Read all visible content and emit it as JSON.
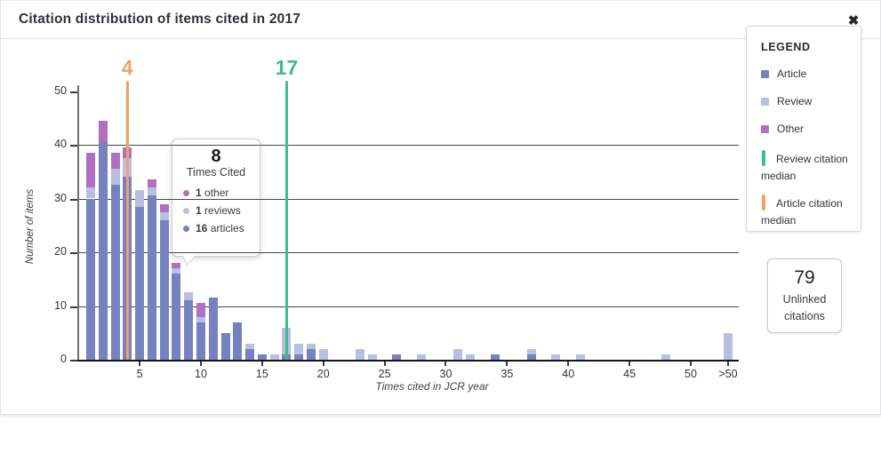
{
  "header": {
    "title": "Citation distribution of items cited in 2017",
    "close_icon": "✖"
  },
  "colors": {
    "article": "#7681bf",
    "review": "#b8bfe0",
    "other": "#b16fc2",
    "article_median": "#f0a163",
    "review_median": "#3fbc90"
  },
  "chart_data": {
    "type": "bar",
    "stacked": true,
    "title": "Citation distribution of items cited in 2017",
    "xlabel": "Times cited in JCR year",
    "ylabel": "Number of items",
    "ylim": [
      0,
      50
    ],
    "yticks": [
      0,
      10,
      20,
      30,
      40,
      50
    ],
    "gridlines": [
      10,
      20,
      30,
      40
    ],
    "xtick_labels": [
      "5",
      "10",
      "15",
      "20",
      "25",
      "30",
      "35",
      "40",
      "45",
      "50",
      ">50"
    ],
    "series_names": [
      "Article",
      "Review",
      "Other"
    ],
    "bars": [
      {
        "x": 1,
        "article": 30,
        "review": 2,
        "other": 6.5
      },
      {
        "x": 2,
        "article": 40.5,
        "review": 0,
        "other": 4
      },
      {
        "x": 3,
        "article": 32.5,
        "review": 3,
        "other": 3
      },
      {
        "x": 4,
        "article": 34,
        "review": 3.5,
        "other": 2
      },
      {
        "x": 5,
        "article": 28.5,
        "review": 3,
        "other": 0
      },
      {
        "x": 6,
        "article": 30.5,
        "review": 1.5,
        "other": 1.5
      },
      {
        "x": 7,
        "article": 26,
        "review": 1.5,
        "other": 1.5
      },
      {
        "x": 8,
        "article": 16,
        "review": 1,
        "other": 1
      },
      {
        "x": 9,
        "article": 11,
        "review": 1.5,
        "other": 0
      },
      {
        "x": 10,
        "article": 7,
        "review": 1,
        "other": 2.5
      },
      {
        "x": 11,
        "article": 11.5,
        "review": 0,
        "other": 0
      },
      {
        "x": 12,
        "article": 5,
        "review": 0,
        "other": 0
      },
      {
        "x": 13,
        "article": 7,
        "review": 0,
        "other": 0
      },
      {
        "x": 14,
        "article": 2,
        "review": 1,
        "other": 0
      },
      {
        "x": 15,
        "article": 1,
        "review": 0,
        "other": 0
      },
      {
        "x": 16,
        "article": 0,
        "review": 1,
        "other": 0
      },
      {
        "x": 17,
        "article": 1,
        "review": 5,
        "other": 0
      },
      {
        "x": 18,
        "article": 1,
        "review": 2,
        "other": 0
      },
      {
        "x": 19,
        "article": 2,
        "review": 1,
        "other": 0
      },
      {
        "x": 20,
        "article": 0,
        "review": 2,
        "other": 0
      },
      {
        "x": 23,
        "article": 0,
        "review": 2,
        "other": 0
      },
      {
        "x": 24,
        "article": 0,
        "review": 1,
        "other": 0
      },
      {
        "x": 26,
        "article": 1,
        "review": 0,
        "other": 0
      },
      {
        "x": 28,
        "article": 0,
        "review": 1,
        "other": 0
      },
      {
        "x": 31,
        "article": 0,
        "review": 2,
        "other": 0
      },
      {
        "x": 32,
        "article": 0,
        "review": 1,
        "other": 0
      },
      {
        "x": 34,
        "article": 1,
        "review": 0,
        "other": 0
      },
      {
        "x": 37,
        "article": 1,
        "review": 1,
        "other": 0
      },
      {
        "x": 39,
        "article": 0,
        "review": 1,
        "other": 0
      },
      {
        "x": 41,
        "article": 0,
        "review": 1,
        "other": 0
      },
      {
        "x": 48,
        "article": 0,
        "review": 1,
        "other": 0
      },
      {
        "x": ">50",
        "article": 0,
        "review": 5,
        "other": 0
      }
    ],
    "medians": {
      "article": {
        "value": 4,
        "label": "4"
      },
      "review": {
        "value": 17,
        "label": "17"
      }
    }
  },
  "tooltip": {
    "value": "8",
    "label": "Times Cited",
    "rows": [
      {
        "count": "1",
        "label": "other",
        "series": "other"
      },
      {
        "count": "1",
        "label": "reviews",
        "series": "review"
      },
      {
        "count": "16",
        "label": "articles",
        "series": "article"
      }
    ]
  },
  "legend": {
    "title": "LEGEND",
    "items": [
      {
        "label": "Article",
        "series": "article"
      },
      {
        "label": "Review",
        "series": "review"
      },
      {
        "label": "Other",
        "series": "other"
      }
    ],
    "line_items": [
      {
        "label": "Review citation median",
        "series": "review_median"
      },
      {
        "label": "Article citation median",
        "series": "article_median"
      }
    ]
  },
  "unlinked": {
    "value": "79",
    "label_line1": "Unlinked",
    "label_line2": "citations"
  }
}
